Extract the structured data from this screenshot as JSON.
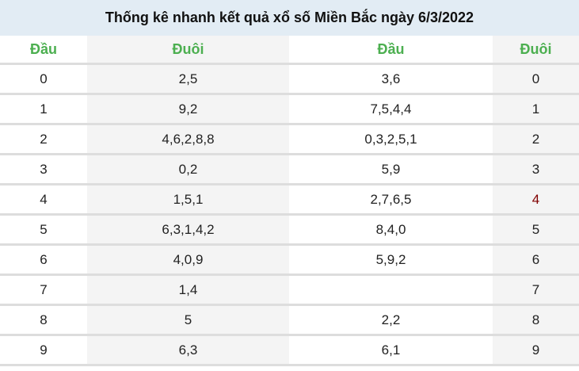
{
  "title": "Thống kê nhanh kết quả xổ số Miền Bắc ngày 6/3/2022",
  "headers": [
    "Đầu",
    "Đuôi",
    "Đầu",
    "Đuôi"
  ],
  "rows": [
    [
      "0",
      "2,5",
      "3,6",
      "0"
    ],
    [
      "1",
      "9,2",
      "7,5,4,4",
      "1"
    ],
    [
      "2",
      "4,6,2,8,8",
      "0,3,2,5,1",
      "2"
    ],
    [
      "3",
      "0,2",
      "5,9",
      "3"
    ],
    [
      "4",
      "1,5,1",
      "2,7,6,5",
      "4"
    ],
    [
      "5",
      "6,3,1,4,2",
      "8,4,0",
      "5"
    ],
    [
      "6",
      "4,0,9",
      "5,9,2",
      "6"
    ],
    [
      "7",
      "1,4",
      "",
      "7"
    ],
    [
      "8",
      "5",
      "2,2",
      "8"
    ],
    [
      "9",
      "6,3",
      "6,1",
      "9"
    ]
  ],
  "highlight_color": "#800000",
  "header_color": "#4caf50"
}
